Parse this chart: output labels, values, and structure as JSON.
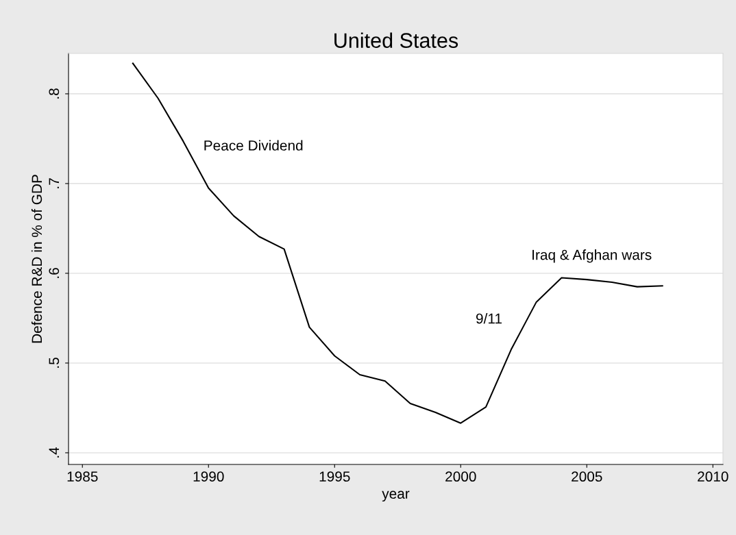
{
  "chart_data": {
    "type": "line",
    "title": "United States",
    "xlabel": "year",
    "ylabel": "Defence R&D in % of GDP",
    "x": [
      1987,
      1988,
      1989,
      1990,
      1991,
      1992,
      1993,
      1994,
      1995,
      1996,
      1997,
      1998,
      1999,
      2000,
      2001,
      2002,
      2003,
      2004,
      2005,
      2006,
      2007,
      2008
    ],
    "series": [
      {
        "color": "#000000",
        "values": [
          0.834,
          0.795,
          0.747,
          0.695,
          0.664,
          0.641,
          0.627,
          0.54,
          0.508,
          0.487,
          0.48,
          0.455,
          0.445,
          0.433,
          0.451,
          0.515,
          0.568,
          0.595,
          0.593,
          0.59,
          0.585,
          0.586
        ]
      }
    ],
    "xlim": [
      1984.45,
      2010.4
    ],
    "ylim": [
      0.387,
      0.845
    ],
    "xticks": [
      1985,
      1990,
      1995,
      2000,
      2005,
      2010
    ],
    "yticks": [
      {
        "value": 0.4,
        "label": ".4"
      },
      {
        "value": 0.5,
        "label": ".5"
      },
      {
        "value": 0.6,
        "label": ".6"
      },
      {
        "value": 0.7,
        "label": ".7"
      },
      {
        "value": 0.8,
        "label": ".8"
      }
    ],
    "grid": "y",
    "marker": "none",
    "line_style": "solid",
    "annotations": [
      "Peace Dividend",
      "9/11",
      "Iraq & Afghan wars"
    ]
  }
}
